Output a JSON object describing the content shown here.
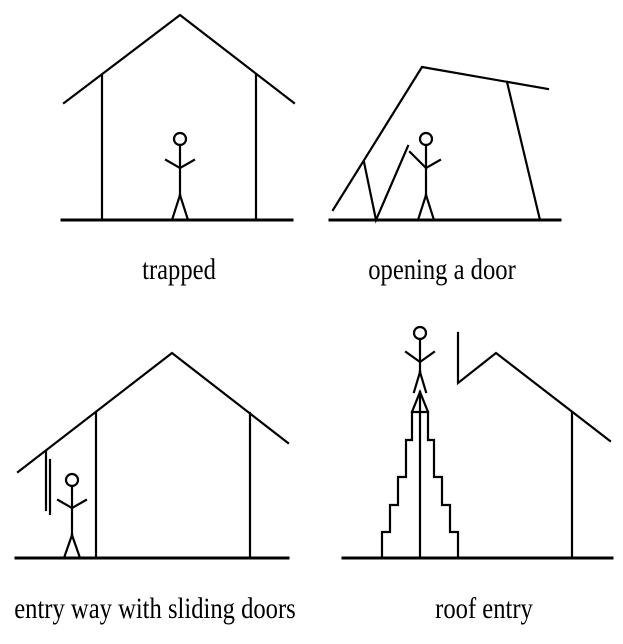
{
  "panels": [
    {
      "id": "trapped",
      "caption": "trapped"
    },
    {
      "id": "opening",
      "caption": "opening a door"
    },
    {
      "id": "sliding",
      "caption": "entry way with sliding doors"
    },
    {
      "id": "roof",
      "caption": "roof entry"
    }
  ],
  "colors": {
    "ink": "#000000",
    "background": "#ffffff"
  }
}
